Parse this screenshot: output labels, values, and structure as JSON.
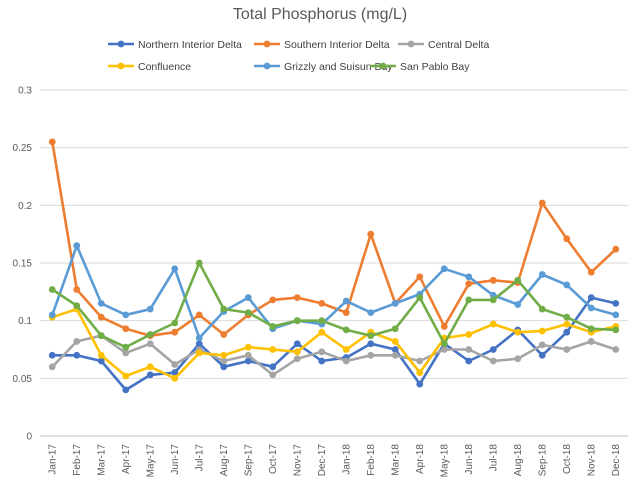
{
  "chart_data": {
    "type": "line",
    "title": "Total Phosphorus (mg/L)",
    "xlabel": "",
    "ylabel": "",
    "ylim": [
      0,
      0.3
    ],
    "yticks": [
      "0",
      "0.05",
      "0.1",
      "0.15",
      "0.2",
      "0.25",
      "0.3"
    ],
    "grid": true,
    "legend_position": "top",
    "categories": [
      "Jan-17",
      "Feb-17",
      "Mar-17",
      "Apr-17",
      "May-17",
      "Jun-17",
      "Jul-17",
      "Aug-17",
      "Sep-17",
      "Oct-17",
      "Nov-17",
      "Dec-17",
      "Jan-18",
      "Feb-18",
      "Mar-18",
      "Apr-18",
      "May-18",
      "Jun-18",
      "Jul-18",
      "Aug-18",
      "Sep-18",
      "Oct-18",
      "Nov-18",
      "Dec-18"
    ],
    "series": [
      {
        "name": "Northern Interior Delta",
        "color": "#4472c4",
        "values": [
          0.07,
          0.07,
          0.065,
          0.04,
          0.053,
          0.055,
          0.08,
          0.06,
          0.065,
          0.06,
          0.08,
          0.065,
          0.068,
          0.08,
          0.075,
          0.045,
          0.08,
          0.065,
          0.075,
          0.092,
          0.07,
          0.09,
          0.12,
          0.115
        ]
      },
      {
        "name": "Southern Interior Delta",
        "color": "#ed7d31",
        "values": [
          0.255,
          0.127,
          0.103,
          0.093,
          0.087,
          0.09,
          0.105,
          0.088,
          0.105,
          0.118,
          0.12,
          0.115,
          0.107,
          0.175,
          0.115,
          0.138,
          0.095,
          0.132,
          0.135,
          0.133,
          0.202,
          0.171,
          0.142,
          0.162
        ]
      },
      {
        "name": "Central Delta",
        "color": "#a5a5a5",
        "values": [
          0.06,
          0.082,
          0.087,
          0.072,
          0.08,
          0.062,
          0.075,
          0.065,
          0.07,
          0.053,
          0.067,
          0.073,
          0.065,
          0.07,
          0.07,
          0.065,
          0.075,
          0.075,
          0.065,
          0.067,
          0.079,
          0.075,
          0.082,
          0.075
        ]
      },
      {
        "name": "Confluence",
        "color": "#ffc000",
        "values": [
          0.103,
          0.11,
          0.07,
          0.052,
          0.06,
          0.05,
          0.072,
          0.07,
          0.077,
          0.075,
          0.073,
          0.09,
          0.075,
          0.09,
          0.082,
          0.055,
          0.085,
          0.088,
          0.097,
          0.09,
          0.091,
          0.097,
          0.09,
          0.095
        ]
      },
      {
        "name": "Grizzly and Suisun Bay",
        "color": "#5b9bd5",
        "values": [
          0.105,
          0.165,
          0.115,
          0.105,
          0.11,
          0.145,
          0.085,
          0.108,
          0.12,
          0.093,
          0.1,
          0.097,
          0.117,
          0.107,
          0.115,
          0.123,
          0.145,
          0.138,
          0.122,
          0.114,
          0.14,
          0.131,
          0.111,
          0.105
        ]
      },
      {
        "name": "San Pablo Bay",
        "color": "#70ad47",
        "values": [
          0.127,
          0.113,
          0.087,
          0.077,
          0.088,
          0.098,
          0.15,
          0.11,
          0.107,
          0.095,
          0.1,
          0.1,
          0.092,
          0.087,
          0.093,
          0.12,
          0.08,
          0.118,
          0.118,
          0.135,
          0.11,
          0.103,
          0.093,
          0.092
        ]
      }
    ]
  }
}
